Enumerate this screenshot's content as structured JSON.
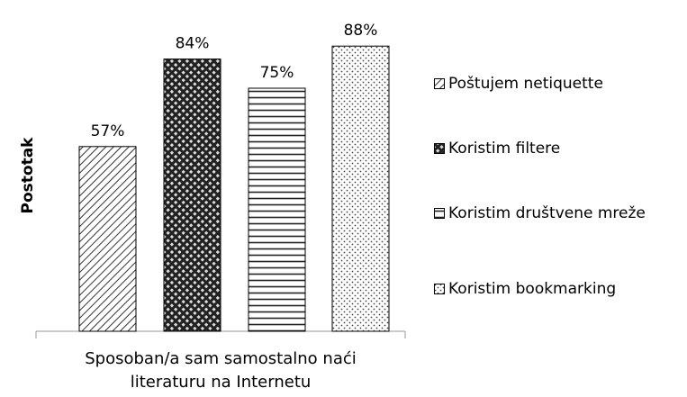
{
  "chart_data": {
    "type": "bar",
    "categories": [
      "Sposoban/a sam samostalno naći literaturu na Internetu"
    ],
    "ylabel": "Postotak",
    "series": [
      {
        "name": "Poštujem netiquette",
        "color": "#000000",
        "pattern": "diagonal",
        "values": [
          57
        ],
        "value_labels": [
          "57%"
        ]
      },
      {
        "name": "Koristim filtere",
        "color": "#000000",
        "pattern": "checker",
        "values": [
          84
        ],
        "value_labels": [
          "84%"
        ]
      },
      {
        "name": "Koristim društvene mreže",
        "color": "#000000",
        "pattern": "horizontal",
        "values": [
          75
        ],
        "value_labels": [
          "75%"
        ]
      },
      {
        "name": "Koristim bookmarking",
        "color": "#000000",
        "pattern": "dots",
        "values": [
          88
        ],
        "value_labels": [
          "88%"
        ]
      }
    ],
    "ylim": [
      0,
      100
    ],
    "grid": false,
    "legend": "right"
  }
}
